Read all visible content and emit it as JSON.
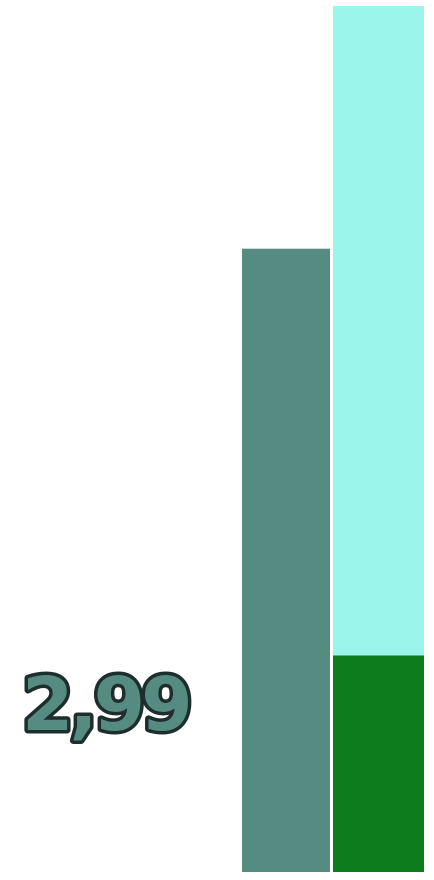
{
  "chart_data": {
    "type": "bar",
    "stacked": true,
    "categories": [
      "",
      ""
    ],
    "ylim": [
      0,
      6.6
    ],
    "grid": false,
    "legend": "none",
    "series": [
      {
        "values": [
          4.75,
          1.65
        ],
        "color": "#558b80"
      },
      {
        "values": [
          0,
          4.95
        ],
        "color": "#9bf5ea"
      }
    ],
    "colors": {
      "bar_a": "#558b80",
      "bar_b_bottom": "#0d7c1c",
      "bar_b_top": "#9bf5ea",
      "label_fill": "#558b80",
      "label_outline": "#1e2e2c"
    },
    "data_labels": [
      {
        "text": "2,99",
        "series": 0,
        "category": 0
      }
    ]
  }
}
